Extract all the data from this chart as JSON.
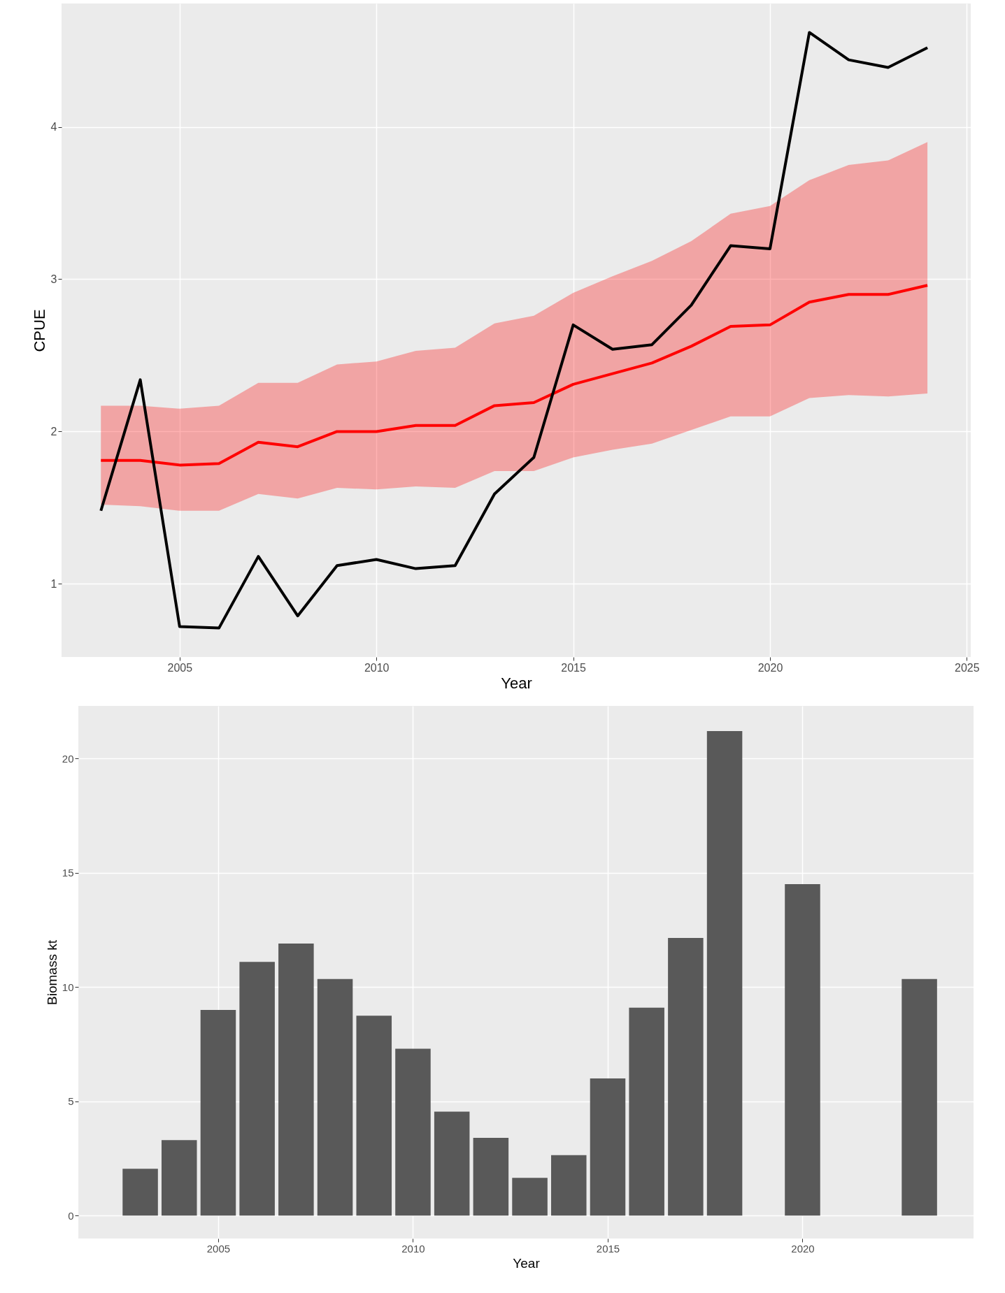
{
  "chart_data": [
    {
      "type": "line",
      "xlabel": "Year",
      "ylabel": "CPUE",
      "x": [
        2003,
        2004,
        2005,
        2006,
        2007,
        2008,
        2009,
        2010,
        2011,
        2012,
        2013,
        2014,
        2015,
        2016,
        2017,
        2018,
        2019,
        2020,
        2021,
        2022,
        2023,
        2024
      ],
      "xlim": [
        2002,
        2025.1
      ],
      "xticks": [
        2005,
        2010,
        2015,
        2020,
        2025
      ],
      "ylim": [
        0.52,
        4.81
      ],
      "yticks": [
        1,
        2,
        3,
        4
      ],
      "grid": true,
      "series": [
        {
          "color": "#ff0000",
          "values": [
            1.81,
            1.81,
            1.78,
            1.79,
            1.93,
            1.9,
            2.0,
            2.0,
            2.04,
            2.04,
            2.17,
            2.19,
            2.31,
            2.38,
            2.45,
            2.56,
            2.69,
            2.7,
            2.85,
            2.9,
            2.9,
            2.96
          ],
          "lower": [
            1.52,
            1.51,
            1.48,
            1.48,
            1.59,
            1.56,
            1.63,
            1.62,
            1.64,
            1.63,
            1.74,
            1.74,
            1.83,
            1.88,
            1.92,
            2.01,
            2.1,
            2.1,
            2.22,
            2.24,
            2.23,
            2.25
          ],
          "upper": [
            2.17,
            2.17,
            2.15,
            2.17,
            2.32,
            2.32,
            2.44,
            2.46,
            2.53,
            2.55,
            2.71,
            2.76,
            2.91,
            3.02,
            3.12,
            3.25,
            3.43,
            3.48,
            3.65,
            3.75,
            3.78,
            3.9
          ]
        },
        {
          "color": "#000000",
          "values": [
            1.48,
            2.34,
            0.72,
            0.71,
            1.18,
            0.79,
            1.12,
            1.16,
            1.1,
            1.12,
            1.59,
            1.83,
            2.7,
            2.54,
            2.57,
            2.83,
            3.22,
            3.2,
            4.62,
            4.44,
            4.39,
            4.52
          ]
        }
      ]
    },
    {
      "type": "bar",
      "xlabel": "Year",
      "ylabel": "Biomass kt",
      "x": [
        2003,
        2004,
        2005,
        2006,
        2007,
        2008,
        2009,
        2010,
        2011,
        2012,
        2013,
        2014,
        2015,
        2016,
        2017,
        2018,
        2019,
        2020,
        2021,
        2022,
        2023
      ],
      "xlim": [
        2001.5,
        2024.3
      ],
      "xticks": [
        2005,
        2010,
        2015,
        2020
      ],
      "ylim": [
        -1,
        22.3
      ],
      "yticks": [
        0,
        5,
        10,
        15,
        20
      ],
      "grid": true,
      "series": [
        {
          "color": "#595959",
          "values": [
            2.05,
            3.3,
            9.0,
            11.1,
            11.9,
            10.35,
            8.75,
            7.3,
            4.55,
            3.4,
            1.65,
            2.65,
            6.0,
            9.1,
            12.15,
            21.2,
            null,
            14.5,
            null,
            null,
            10.35
          ]
        }
      ]
    }
  ]
}
